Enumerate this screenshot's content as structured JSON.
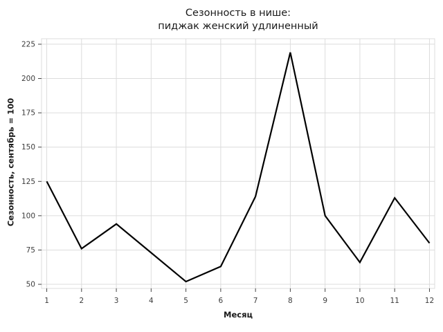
{
  "title": {
    "line1": "Сезонность в нише:",
    "line2": "пиджак женский удлиненный"
  },
  "axes": {
    "xlabel": "Месяц",
    "ylabel": "Сезонность, сентябрь = 100"
  },
  "chart_data": {
    "type": "line",
    "title": "Сезонность в нише: пиджак женский удлиненный",
    "xlabel": "Месяц",
    "ylabel": "Сезонность, сентябрь = 100",
    "x": [
      1,
      2,
      3,
      4,
      5,
      6,
      7,
      8,
      9,
      10,
      11,
      12
    ],
    "values": [
      125,
      76,
      94,
      73,
      52,
      63,
      114,
      219,
      100,
      66,
      113,
      80
    ],
    "xticks": [
      1,
      2,
      3,
      4,
      5,
      6,
      7,
      8,
      9,
      10,
      11,
      12
    ],
    "yticks": [
      50,
      75,
      100,
      125,
      150,
      175,
      200,
      225
    ],
    "xlim": [
      0.85,
      12.15
    ],
    "ylim": [
      47,
      229
    ],
    "grid": true,
    "legend": false,
    "line_color": "#000000",
    "line_width": 2.2,
    "grid_color": "#dcdcdc",
    "tick_color": "#444444",
    "tick_label_color": "#3c3c3c",
    "text_color": "#1a1a1a",
    "background": "#ffffff"
  }
}
